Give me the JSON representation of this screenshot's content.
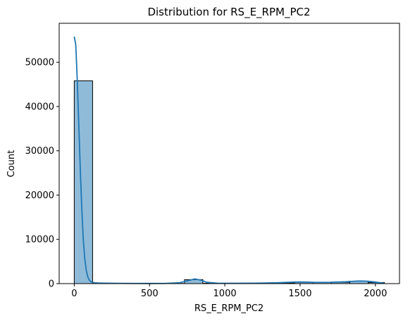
{
  "chart_data": {
    "type": "histogram",
    "title": "Distribution for RS_E_RPM_PC2",
    "xlabel": "RS_E_RPM_PC2",
    "ylabel": "Count",
    "xlim": [
      -100,
      2160
    ],
    "ylim": [
      0,
      58800
    ],
    "xticks": [
      0,
      500,
      1000,
      1500,
      2000
    ],
    "xtick_labels": [
      "0",
      "500",
      "1000",
      "1500",
      "2000"
    ],
    "yticks": [
      0,
      10000,
      20000,
      30000,
      40000,
      50000
    ],
    "ytick_labels": [
      "0",
      "10000",
      "20000",
      "30000",
      "40000",
      "50000"
    ],
    "bar_color": "#1f77b4",
    "bar_alpha": 0.5,
    "kde_color": "#1f77b4",
    "bins": [
      {
        "x0": 0,
        "x1": 122,
        "count": 45800
      },
      {
        "x0": 122,
        "x1": 244,
        "count": 50
      },
      {
        "x0": 244,
        "x1": 366,
        "count": 20
      },
      {
        "x0": 366,
        "x1": 488,
        "count": 15
      },
      {
        "x0": 488,
        "x1": 610,
        "count": 20
      },
      {
        "x0": 610,
        "x1": 732,
        "count": 40
      },
      {
        "x0": 732,
        "x1": 854,
        "count": 900
      },
      {
        "x0": 854,
        "x1": 976,
        "count": 80
      },
      {
        "x0": 976,
        "x1": 1098,
        "count": 30
      },
      {
        "x0": 1098,
        "x1": 1220,
        "count": 30
      },
      {
        "x0": 1220,
        "x1": 1342,
        "count": 60
      },
      {
        "x0": 1342,
        "x1": 1464,
        "count": 130
      },
      {
        "x0": 1464,
        "x1": 1586,
        "count": 300
      },
      {
        "x0": 1586,
        "x1": 1708,
        "count": 250
      },
      {
        "x0": 1708,
        "x1": 1830,
        "count": 300
      },
      {
        "x0": 1830,
        "x1": 1952,
        "count": 550
      },
      {
        "x0": 1952,
        "x1": 2060,
        "count": 250
      }
    ],
    "kde": {
      "x": [
        0,
        10,
        20,
        30,
        40,
        50,
        60,
        70,
        80,
        90,
        100,
        110,
        120,
        130,
        140,
        160,
        200,
        300,
        400,
        500,
        600,
        700,
        760,
        800,
        840,
        880,
        950,
        1050,
        1200,
        1350,
        1450,
        1500,
        1550,
        1600,
        1700,
        1800,
        1870,
        1900,
        1950,
        2000,
        2040,
        2060
      ],
      "y": [
        55800,
        54000,
        46000,
        36000,
        26000,
        17000,
        10000,
        5600,
        3000,
        1500,
        800,
        450,
        300,
        220,
        180,
        130,
        100,
        60,
        40,
        30,
        40,
        200,
        700,
        1050,
        800,
        300,
        90,
        70,
        90,
        200,
        330,
        380,
        330,
        280,
        300,
        420,
        560,
        600,
        540,
        350,
        150,
        90
      ]
    }
  }
}
